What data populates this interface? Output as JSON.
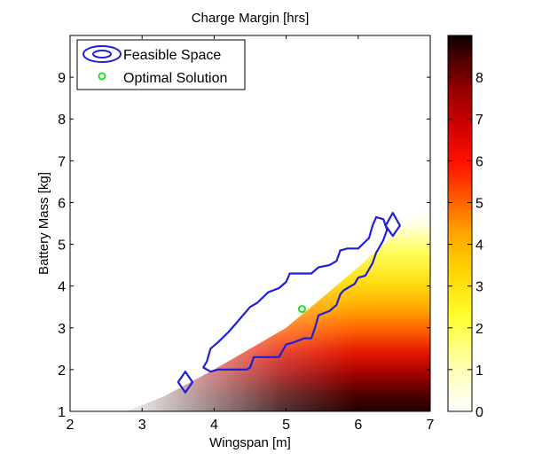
{
  "chart_data": {
    "type": "heatmap",
    "title": "Charge Margin [hrs]",
    "xlabel": "Wingspan [m]",
    "ylabel": "Battery Mass [kg]",
    "xlim": [
      2,
      7
    ],
    "ylim": [
      1,
      10
    ],
    "xticks": [
      "2",
      "3",
      "4",
      "5",
      "6",
      "7"
    ],
    "yticks": [
      "1",
      "2",
      "3",
      "4",
      "5",
      "6",
      "7",
      "8",
      "9"
    ],
    "colorbar": {
      "range": [
        0,
        9
      ],
      "ticks": [
        "0",
        "1",
        "2",
        "3",
        "4",
        "5",
        "6",
        "7",
        "8"
      ],
      "colormap": "hot (reversed)"
    },
    "legend": {
      "placement": "top-left",
      "entries": [
        {
          "label": "Feasible Space",
          "color": "#1f1fd9"
        },
        {
          "label": "Optimal Solution",
          "color": "#22dd22"
        }
      ]
    },
    "feasible_space": {
      "color": "#1f1fd9",
      "main_boundary": [
        [
          3.95,
          1.95
        ],
        [
          4.05,
          2.0
        ],
        [
          4.45,
          2.0
        ],
        [
          4.5,
          2.05
        ],
        [
          4.55,
          2.3
        ],
        [
          4.9,
          2.3
        ],
        [
          4.95,
          2.45
        ],
        [
          5.0,
          2.6
        ],
        [
          5.1,
          2.65
        ],
        [
          5.25,
          2.75
        ],
        [
          5.35,
          2.75
        ],
        [
          5.4,
          3.0
        ],
        [
          5.45,
          3.3
        ],
        [
          5.6,
          3.4
        ],
        [
          5.7,
          3.55
        ],
        [
          5.75,
          3.8
        ],
        [
          5.8,
          3.9
        ],
        [
          5.85,
          3.95
        ],
        [
          5.95,
          4.05
        ],
        [
          6.0,
          4.2
        ],
        [
          6.1,
          4.25
        ],
        [
          6.2,
          4.55
        ],
        [
          6.25,
          4.8
        ],
        [
          6.3,
          4.95
        ],
        [
          6.35,
          5.1
        ],
        [
          6.4,
          5.35
        ],
        [
          6.35,
          5.6
        ],
        [
          6.25,
          5.65
        ],
        [
          6.2,
          5.45
        ],
        [
          6.15,
          5.15
        ],
        [
          6.0,
          4.9
        ],
        [
          5.85,
          4.9
        ],
        [
          5.75,
          4.85
        ],
        [
          5.7,
          4.6
        ],
        [
          5.6,
          4.5
        ],
        [
          5.45,
          4.45
        ],
        [
          5.35,
          4.3
        ],
        [
          5.05,
          4.3
        ],
        [
          5.0,
          4.1
        ],
        [
          4.9,
          3.95
        ],
        [
          4.75,
          3.85
        ],
        [
          4.6,
          3.6
        ],
        [
          4.5,
          3.5
        ],
        [
          4.4,
          3.3
        ],
        [
          4.3,
          3.1
        ],
        [
          4.2,
          2.9
        ],
        [
          4.05,
          2.65
        ],
        [
          3.95,
          2.5
        ],
        [
          3.9,
          2.2
        ],
        [
          3.85,
          2.05
        ],
        [
          3.95,
          1.95
        ]
      ],
      "islands": [
        [
          [
            3.6,
            1.95
          ],
          [
            3.7,
            1.7
          ],
          [
            3.6,
            1.45
          ],
          [
            3.5,
            1.7
          ],
          [
            3.6,
            1.95
          ]
        ],
        [
          [
            6.48,
            5.75
          ],
          [
            6.58,
            5.45
          ],
          [
            6.48,
            5.2
          ],
          [
            6.38,
            5.45
          ],
          [
            6.48,
            5.75
          ]
        ]
      ]
    },
    "optimal_solution": {
      "x": 5.22,
      "y": 3.45,
      "color": "#22dd22"
    },
    "field_region_lower_edge": [
      [
        2.8,
        1.0
      ],
      [
        7.0,
        1.0
      ]
    ],
    "field_region_upper_edge": [
      [
        2.8,
        1.0
      ],
      [
        3.3,
        1.35
      ],
      [
        4.0,
        2.0
      ],
      [
        5.0,
        3.0
      ],
      [
        6.0,
        4.45
      ],
      [
        7.0,
        6.05
      ]
    ]
  }
}
